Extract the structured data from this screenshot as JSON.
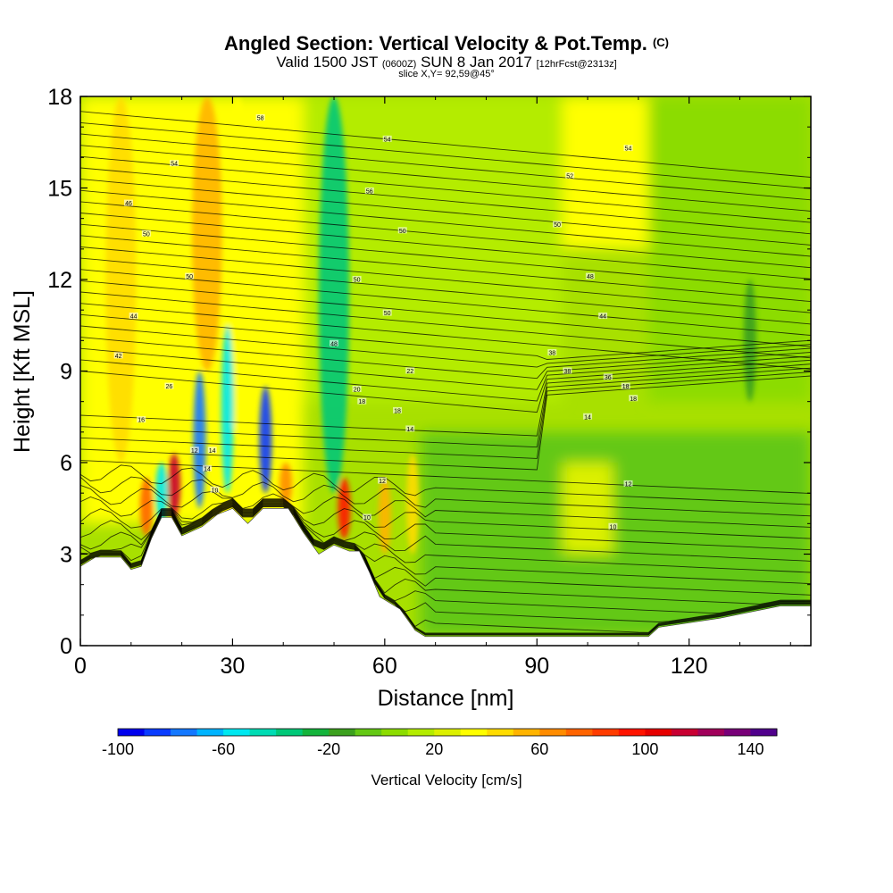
{
  "header": {
    "title": "Angled Section: Vertical Velocity & Pot.Temp.",
    "title_unit": "(C)",
    "valid_main": "Valid 1500 JST",
    "valid_utc": "(0600Z)",
    "valid_date": "SUN 8 Jan 2017",
    "fcst": "[12hrFcst@2313z]",
    "slice": "slice X,Y= 92,59@45°"
  },
  "colors": {
    "background": "#ffffff",
    "terrain": "#ffffff",
    "contour": "#000000",
    "colorbar": [
      "#0000ee",
      "#0a3cff",
      "#1478ff",
      "#00b4ff",
      "#00e8f0",
      "#00dcb4",
      "#00c878",
      "#14b43c",
      "#3ca01e",
      "#64c814",
      "#8cdc00",
      "#b4ec00",
      "#dcf000",
      "#ffff00",
      "#ffdc00",
      "#ffb400",
      "#ff8c00",
      "#ff6400",
      "#ff3c00",
      "#ff1400",
      "#e60000",
      "#c80032",
      "#a0005a",
      "#780078",
      "#50008c"
    ]
  },
  "chart_data": {
    "type": "heatmap",
    "title": "Angled Section: Vertical Velocity & Pot.Temp.",
    "xlabel": "Distance [nm]",
    "ylabel": "Height [Kft MSL]",
    "xlim": [
      0,
      144
    ],
    "ylim": [
      0,
      18
    ],
    "xticks": [
      0,
      30,
      60,
      90,
      120
    ],
    "yticks": [
      0,
      3,
      6,
      9,
      12,
      15,
      18
    ],
    "colorbar": {
      "label": "Vertical Velocity [cm/s]",
      "min": -100,
      "max": 150,
      "step": 10,
      "tick_labels": [
        "-100",
        "-60",
        "-20",
        "20",
        "60",
        "100",
        "140"
      ]
    },
    "terrain_height_kft": [
      {
        "x": 0,
        "h": 2.6
      },
      {
        "x": 3,
        "h": 2.9
      },
      {
        "x": 8,
        "h": 2.9
      },
      {
        "x": 10,
        "h": 2.5
      },
      {
        "x": 12,
        "h": 2.6
      },
      {
        "x": 14,
        "h": 3.5
      },
      {
        "x": 16,
        "h": 4.2
      },
      {
        "x": 18,
        "h": 4.2
      },
      {
        "x": 20,
        "h": 3.6
      },
      {
        "x": 24,
        "h": 3.9
      },
      {
        "x": 27,
        "h": 4.3
      },
      {
        "x": 30,
        "h": 4.5
      },
      {
        "x": 33,
        "h": 4.0
      },
      {
        "x": 36,
        "h": 4.5
      },
      {
        "x": 41,
        "h": 4.5
      },
      {
        "x": 44,
        "h": 3.7
      },
      {
        "x": 47,
        "h": 3.0
      },
      {
        "x": 50,
        "h": 3.3
      },
      {
        "x": 53,
        "h": 3.1
      },
      {
        "x": 55,
        "h": 3.1
      },
      {
        "x": 57,
        "h": 2.4
      },
      {
        "x": 59,
        "h": 1.6
      },
      {
        "x": 63,
        "h": 1.2
      },
      {
        "x": 66,
        "h": 0.5
      },
      {
        "x": 68,
        "h": 0.3
      },
      {
        "x": 112,
        "h": 0.3
      },
      {
        "x": 114,
        "h": 0.6
      },
      {
        "x": 126,
        "h": 0.9
      },
      {
        "x": 138,
        "h": 1.3
      },
      {
        "x": 144,
        "h": 1.3
      }
    ],
    "features": [
      {
        "type": "updraft",
        "x": 18.5,
        "zmin": 4.2,
        "zmax": 6.3,
        "value": 110
      },
      {
        "type": "updraft",
        "x": 52,
        "zmin": 3.5,
        "zmax": 5.5,
        "value": 90
      },
      {
        "type": "updraft",
        "x": 13,
        "zmin": 3.6,
        "zmax": 5.5,
        "value": 70
      },
      {
        "type": "updraft",
        "x": 40.5,
        "zmin": 4.6,
        "zmax": 6.0,
        "value": 60
      },
      {
        "type": "updraft",
        "x": 60,
        "zmin": 3.0,
        "zmax": 5.5,
        "value": 50
      },
      {
        "type": "updraft",
        "x": 65.5,
        "zmin": 3.0,
        "zmax": 6.3,
        "value": 45
      },
      {
        "type": "updraft",
        "x": 8,
        "zmin": 6,
        "zmax": 18,
        "value": 45
      },
      {
        "type": "updraft",
        "x": 25,
        "zmin": 9,
        "zmax": 18,
        "value": 50
      },
      {
        "type": "updraft",
        "x": 31,
        "zmin": 7,
        "zmax": 18,
        "value": 30
      },
      {
        "type": "downdraft",
        "x": 23.5,
        "zmin": 4.5,
        "zmax": 9.0,
        "value": -75
      },
      {
        "type": "downdraft",
        "x": 29,
        "zmin": 5.0,
        "zmax": 10.5,
        "value": -55
      },
      {
        "type": "downdraft",
        "x": 36.5,
        "zmin": 5.0,
        "zmax": 8.5,
        "value": -85
      },
      {
        "type": "downdraft",
        "x": 16,
        "zmin": 4.0,
        "zmax": 6.0,
        "value": -60
      },
      {
        "type": "downdraft",
        "x": 50,
        "zmin": 5.0,
        "zmax": 18,
        "value": -40
      },
      {
        "type": "downdraft",
        "x": 132,
        "zmin": 8.0,
        "zmax": 12.0,
        "value": -20
      }
    ],
    "contour_labels": [
      {
        "x": 35.5,
        "y": 17.3,
        "text": "58"
      },
      {
        "x": 60.5,
        "y": 16.6,
        "text": "54"
      },
      {
        "x": 108,
        "y": 16.3,
        "text": "54"
      },
      {
        "x": 18.5,
        "y": 15.8,
        "text": "54"
      },
      {
        "x": 96.5,
        "y": 15.4,
        "text": "52"
      },
      {
        "x": 57,
        "y": 14.9,
        "text": "56"
      },
      {
        "x": 9.5,
        "y": 14.5,
        "text": "46"
      },
      {
        "x": 94,
        "y": 13.8,
        "text": "50"
      },
      {
        "x": 63.5,
        "y": 13.6,
        "text": "50"
      },
      {
        "x": 13,
        "y": 13.5,
        "text": "50"
      },
      {
        "x": 100.5,
        "y": 12.1,
        "text": "48"
      },
      {
        "x": 21.5,
        "y": 12.1,
        "text": "50"
      },
      {
        "x": 54.5,
        "y": 12.0,
        "text": "50"
      },
      {
        "x": 60.5,
        "y": 10.9,
        "text": "50"
      },
      {
        "x": 103,
        "y": 10.8,
        "text": "44"
      },
      {
        "x": 10.5,
        "y": 10.8,
        "text": "44"
      },
      {
        "x": 50,
        "y": 9.9,
        "text": "48"
      },
      {
        "x": 93,
        "y": 9.6,
        "text": "38"
      },
      {
        "x": 7.5,
        "y": 9.5,
        "text": "42"
      },
      {
        "x": 96,
        "y": 9.0,
        "text": "38"
      },
      {
        "x": 65,
        "y": 9.0,
        "text": "22"
      },
      {
        "x": 104,
        "y": 8.8,
        "text": "36"
      },
      {
        "x": 17.5,
        "y": 8.5,
        "text": "26"
      },
      {
        "x": 107.5,
        "y": 8.5,
        "text": "18"
      },
      {
        "x": 54.5,
        "y": 8.4,
        "text": "20"
      },
      {
        "x": 109,
        "y": 8.1,
        "text": "18"
      },
      {
        "x": 55.5,
        "y": 8.0,
        "text": "18"
      },
      {
        "x": 62.5,
        "y": 7.7,
        "text": "18"
      },
      {
        "x": 100,
        "y": 7.5,
        "text": "14"
      },
      {
        "x": 12,
        "y": 7.4,
        "text": "16"
      },
      {
        "x": 65,
        "y": 7.1,
        "text": "14"
      },
      {
        "x": 22.5,
        "y": 6.4,
        "text": "12"
      },
      {
        "x": 26,
        "y": 6.4,
        "text": "14"
      },
      {
        "x": 25,
        "y": 5.8,
        "text": "14"
      },
      {
        "x": 59.5,
        "y": 5.4,
        "text": "12"
      },
      {
        "x": 108,
        "y": 5.3,
        "text": "12"
      },
      {
        "x": 26.5,
        "y": 5.1,
        "text": "10"
      },
      {
        "x": 56.5,
        "y": 4.2,
        "text": "10"
      },
      {
        "x": 105,
        "y": 3.9,
        "text": "10"
      }
    ]
  }
}
